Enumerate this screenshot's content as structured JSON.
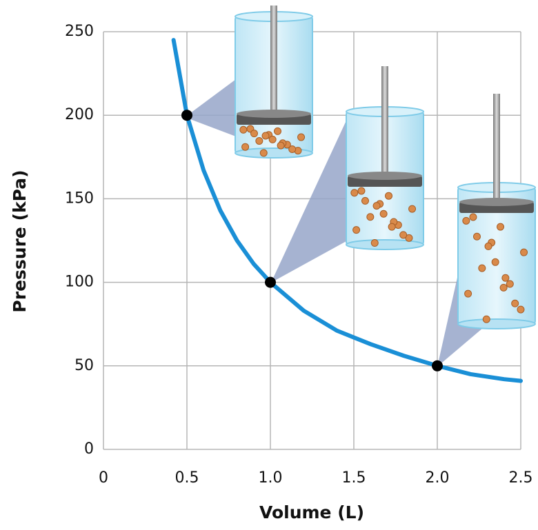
{
  "chart_data": {
    "type": "line",
    "xlabel": "Volume (L)",
    "ylabel": "Pressure (kPa)",
    "x": [
      0.42,
      0.5,
      0.6,
      0.7,
      0.8,
      0.9,
      1.0,
      1.2,
      1.4,
      1.6,
      1.8,
      2.0,
      2.2,
      2.4,
      2.5
    ],
    "series": [
      {
        "color": "#1a8fd6",
        "values": [
          245,
          200,
          167,
          143,
          125,
          111,
          100,
          83,
          71,
          63,
          56,
          50,
          45,
          42,
          41
        ]
      }
    ],
    "markers": {
      "color": "#000000",
      "x": [
        0.5,
        1.0,
        2.0
      ],
      "y": [
        200,
        100,
        50
      ]
    },
    "xlim": [
      0,
      2.5
    ],
    "ylim": [
      0,
      250
    ],
    "xticks": [
      0,
      0.5,
      {
        "value": 1,
        "label": "1.0"
      },
      1.5,
      {
        "value": 2,
        "label": "2.0"
      },
      2.5
    ],
    "yticks": [
      0,
      50,
      100,
      150,
      200,
      250
    ],
    "grid": true
  }
}
